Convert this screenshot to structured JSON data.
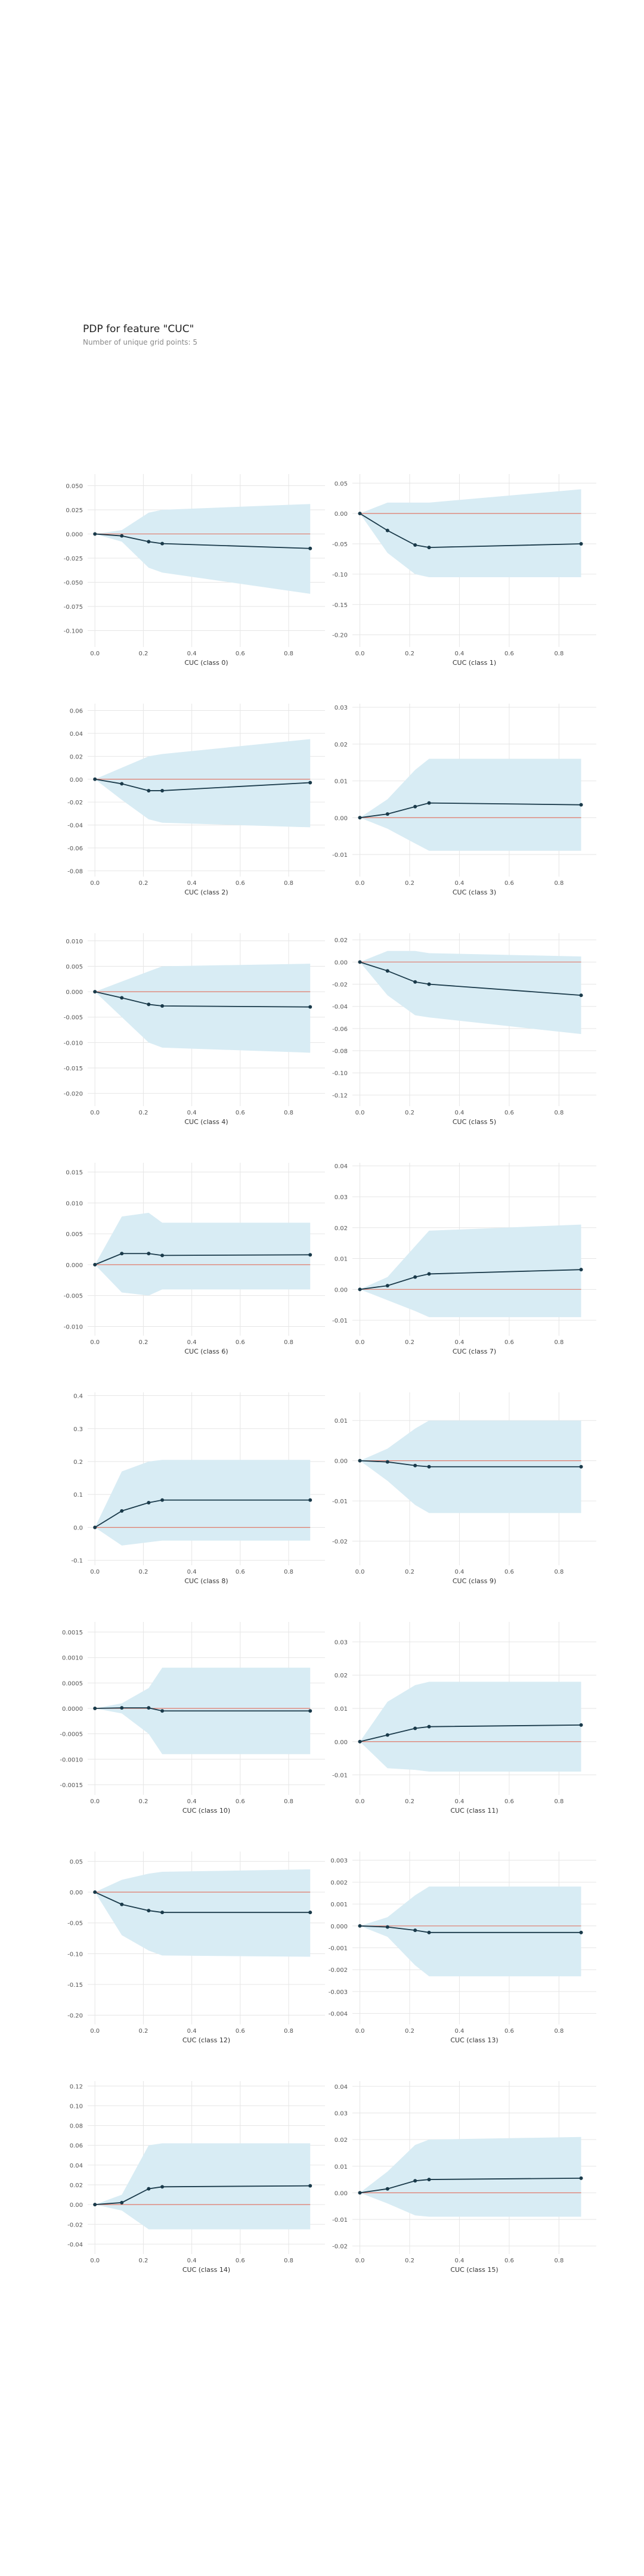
{
  "header": {
    "title": "PDP for feature \"CUC\"",
    "subtitle": "Number of unique grid points: 5"
  },
  "style": {
    "band_color": "#d8ecf4",
    "line_color": "#1a3a4a",
    "zero_line_color": "#e07a6a",
    "grid_color": "#e6e6e6"
  },
  "chart_data": [
    {
      "type": "line",
      "xlabel": "CUC (class 0)",
      "x": [
        0,
        0.111,
        0.222,
        0.278,
        0.889
      ],
      "y": [
        0,
        -0.002,
        -0.008,
        -0.01,
        -0.015
      ],
      "upper": [
        0,
        0.004,
        0.022,
        0.025,
        0.031
      ],
      "lower": [
        0,
        -0.008,
        -0.035,
        -0.04,
        -0.062
      ],
      "yticks": [
        0.05,
        0.025,
        0,
        -0.025,
        -0.05,
        -0.075,
        -0.1
      ],
      "ytick_labels": [
        "0.050",
        "0.025",
        "0.000",
        "-0.025",
        "-0.050",
        "-0.075",
        "-0.100"
      ],
      "ylim": [
        -0.117,
        0.062
      ],
      "xticks": [
        0,
        0.2,
        0.4,
        0.6,
        0.8
      ],
      "xtick_labels": [
        "0.0",
        "0.2",
        "0.4",
        "0.6",
        "0.8"
      ],
      "xlim": [
        -0.03,
        0.95
      ],
      "grid": true
    },
    {
      "type": "line",
      "xlabel": "CUC (class 1)",
      "x": [
        0,
        0.111,
        0.222,
        0.278,
        0.889
      ],
      "y": [
        0,
        -0.028,
        -0.052,
        -0.056,
        -0.05
      ],
      "upper": [
        0,
        0.018,
        0.018,
        0.018,
        0.04
      ],
      "lower": [
        0,
        -0.065,
        -0.1,
        -0.105,
        -0.105
      ],
      "yticks": [
        0.05,
        0,
        -0.05,
        -0.1,
        -0.15,
        -0.2
      ],
      "ytick_labels": [
        "0.05",
        "0.00",
        "-0.05",
        "-0.10",
        "-0.15",
        "-0.20"
      ],
      "ylim": [
        -0.22,
        0.065
      ],
      "xticks": [
        0,
        0.2,
        0.4,
        0.6,
        0.8
      ],
      "xtick_labels": [
        "0.0",
        "0.2",
        "0.4",
        "0.6",
        "0.8"
      ],
      "xlim": [
        -0.03,
        0.95
      ],
      "grid": true
    },
    {
      "type": "line",
      "xlabel": "CUC (class 2)",
      "x": [
        0,
        0.111,
        0.222,
        0.278,
        0.889
      ],
      "y": [
        0,
        -0.004,
        -0.01,
        -0.01,
        -0.003
      ],
      "upper": [
        0,
        0.01,
        0.02,
        0.022,
        0.035
      ],
      "lower": [
        0,
        -0.018,
        -0.035,
        -0.038,
        -0.042
      ],
      "yticks": [
        0.06,
        0.04,
        0.02,
        0,
        -0.02,
        -0.04,
        -0.06,
        -0.08
      ],
      "ytick_labels": [
        "0.06",
        "0.04",
        "0.02",
        "0.00",
        "-0.02",
        "-0.04",
        "-0.06",
        "-0.08"
      ],
      "ylim": [
        -0.085,
        0.066
      ],
      "xticks": [
        0,
        0.2,
        0.4,
        0.6,
        0.8
      ],
      "xtick_labels": [
        "0.0",
        "0.2",
        "0.4",
        "0.6",
        "0.8"
      ],
      "xlim": [
        -0.03,
        0.95
      ],
      "grid": true
    },
    {
      "type": "line",
      "xlabel": "CUC (class 3)",
      "x": [
        0,
        0.111,
        0.222,
        0.278,
        0.889
      ],
      "y": [
        0,
        0.001,
        0.003,
        0.004,
        0.0035
      ],
      "upper": [
        0,
        0.005,
        0.013,
        0.016,
        0.016
      ],
      "lower": [
        0,
        -0.003,
        -0.007,
        -0.009,
        -0.009
      ],
      "yticks": [
        0.03,
        0.02,
        0.01,
        0,
        -0.01
      ],
      "ytick_labels": [
        "0.03",
        "0.02",
        "0.01",
        "0.00",
        "-0.01"
      ],
      "ylim": [
        -0.016,
        0.031
      ],
      "xticks": [
        0,
        0.2,
        0.4,
        0.6,
        0.8
      ],
      "xtick_labels": [
        "0.0",
        "0.2",
        "0.4",
        "0.6",
        "0.8"
      ],
      "xlim": [
        -0.03,
        0.95
      ],
      "grid": true
    },
    {
      "type": "line",
      "xlabel": "CUC (class 4)",
      "x": [
        0,
        0.111,
        0.222,
        0.278,
        0.889
      ],
      "y": [
        0,
        -0.0012,
        -0.0025,
        -0.0028,
        -0.003
      ],
      "upper": [
        0,
        0.002,
        0.004,
        0.005,
        0.0055
      ],
      "lower": [
        0,
        -0.005,
        -0.01,
        -0.011,
        -0.012
      ],
      "yticks": [
        0.01,
        0.005,
        0,
        -0.005,
        -0.01,
        -0.015,
        -0.02
      ],
      "ytick_labels": [
        "0.010",
        "0.005",
        "0.000",
        "-0.005",
        "-0.010",
        "-0.015",
        "-0.020"
      ],
      "ylim": [
        -0.0225,
        0.0115
      ],
      "xticks": [
        0,
        0.2,
        0.4,
        0.6,
        0.8
      ],
      "xtick_labels": [
        "0.0",
        "0.2",
        "0.4",
        "0.6",
        "0.8"
      ],
      "xlim": [
        -0.03,
        0.95
      ],
      "grid": true
    },
    {
      "type": "line",
      "xlabel": "CUC (class 5)",
      "x": [
        0,
        0.111,
        0.222,
        0.278,
        0.889
      ],
      "y": [
        0,
        -0.008,
        -0.018,
        -0.02,
        -0.03
      ],
      "upper": [
        0,
        0.01,
        0.01,
        0.008,
        0.005
      ],
      "lower": [
        0,
        -0.03,
        -0.048,
        -0.05,
        -0.065
      ],
      "yticks": [
        0.02,
        0,
        -0.02,
        -0.04,
        -0.06,
        -0.08,
        -0.1,
        -0.12
      ],
      "ytick_labels": [
        "0.02",
        "0.00",
        "-0.02",
        "-0.04",
        "-0.06",
        "-0.08",
        "-0.10",
        "-0.12"
      ],
      "ylim": [
        -0.13,
        0.026
      ],
      "xticks": [
        0,
        0.2,
        0.4,
        0.6,
        0.8
      ],
      "xtick_labels": [
        "0.0",
        "0.2",
        "0.4",
        "0.6",
        "0.8"
      ],
      "xlim": [
        -0.03,
        0.95
      ],
      "grid": true
    },
    {
      "type": "line",
      "xlabel": "CUC (class 6)",
      "x": [
        0,
        0.111,
        0.222,
        0.278,
        0.889
      ],
      "y": [
        0,
        0.0018,
        0.0018,
        0.0015,
        0.0016
      ],
      "upper": [
        0,
        0.0078,
        0.0084,
        0.0068,
        0.0068
      ],
      "lower": [
        0,
        -0.0045,
        -0.005,
        -0.004,
        -0.004
      ],
      "yticks": [
        0.015,
        0.01,
        0.005,
        0,
        -0.005,
        -0.01
      ],
      "ytick_labels": [
        "0.015",
        "0.010",
        "0.005",
        "0.000",
        "-0.005",
        "-0.010"
      ],
      "ylim": [
        -0.0115,
        0.0165
      ],
      "xticks": [
        0,
        0.2,
        0.4,
        0.6,
        0.8
      ],
      "xtick_labels": [
        "0.0",
        "0.2",
        "0.4",
        "0.6",
        "0.8"
      ],
      "xlim": [
        -0.03,
        0.95
      ],
      "grid": true
    },
    {
      "type": "line",
      "xlabel": "CUC (class 7)",
      "x": [
        0,
        0.111,
        0.222,
        0.278,
        0.889
      ],
      "y": [
        0,
        0.0012,
        0.004,
        0.005,
        0.0064
      ],
      "upper": [
        0,
        0.004,
        0.014,
        0.019,
        0.021
      ],
      "lower": [
        0,
        -0.0035,
        -0.007,
        -0.009,
        -0.009
      ],
      "yticks": [
        0.04,
        0.03,
        0.02,
        0.01,
        0,
        -0.01
      ],
      "ytick_labels": [
        "0.04",
        "0.03",
        "0.02",
        "0.01",
        "0.00",
        "-0.01"
      ],
      "ylim": [
        -0.015,
        0.041
      ],
      "xticks": [
        0,
        0.2,
        0.4,
        0.6,
        0.8
      ],
      "xtick_labels": [
        "0.0",
        "0.2",
        "0.4",
        "0.6",
        "0.8"
      ],
      "xlim": [
        -0.03,
        0.95
      ],
      "grid": true
    },
    {
      "type": "line",
      "xlabel": "CUC (class 8)",
      "x": [
        0,
        0.111,
        0.222,
        0.278,
        0.889
      ],
      "y": [
        0,
        0.05,
        0.075,
        0.083,
        0.083
      ],
      "upper": [
        0,
        0.17,
        0.2,
        0.205,
        0.205
      ],
      "lower": [
        0,
        -0.055,
        -0.045,
        -0.04,
        -0.04
      ],
      "yticks": [
        0.4,
        0.3,
        0.2,
        0.1,
        0,
        -0.1
      ],
      "ytick_labels": [
        "0.4",
        "0.3",
        "0.2",
        "0.1",
        "0.0",
        "-0.1"
      ],
      "ylim": [
        -0.115,
        0.41
      ],
      "xticks": [
        0,
        0.2,
        0.4,
        0.6,
        0.8
      ],
      "xtick_labels": [
        "0.0",
        "0.2",
        "0.4",
        "0.6",
        "0.8"
      ],
      "xlim": [
        -0.03,
        0.95
      ],
      "grid": true
    },
    {
      "type": "line",
      "xlabel": "CUC (class 9)",
      "x": [
        0,
        0.111,
        0.222,
        0.278,
        0.889
      ],
      "y": [
        0,
        -0.0003,
        -0.0012,
        -0.0015,
        -0.0015
      ],
      "upper": [
        0,
        0.003,
        0.008,
        0.01,
        0.01
      ],
      "lower": [
        0,
        -0.005,
        -0.011,
        -0.013,
        -0.013
      ],
      "yticks": [
        0.01,
        0,
        -0.01,
        -0.02
      ],
      "ytick_labels": [
        "0.01",
        "0.00",
        "-0.01",
        "-0.02"
      ],
      "ylim": [
        -0.026,
        0.017
      ],
      "xticks": [
        0,
        0.2,
        0.4,
        0.6,
        0.8
      ],
      "xtick_labels": [
        "0.0",
        "0.2",
        "0.4",
        "0.6",
        "0.8"
      ],
      "xlim": [
        -0.03,
        0.95
      ],
      "grid": true
    },
    {
      "type": "line",
      "xlabel": "CUC (class 10)",
      "x": [
        0,
        0.111,
        0.222,
        0.278,
        0.889
      ],
      "y": [
        0,
        1e-05,
        1e-05,
        -5e-05,
        -5e-05
      ],
      "upper": [
        0,
        0.0001,
        0.0004,
        0.0008,
        0.0008
      ],
      "lower": [
        0,
        -0.0001,
        -0.0005,
        -0.0009,
        -0.0009
      ],
      "yticks": [
        0.0015,
        0.001,
        0.0005,
        0,
        -0.0005,
        -0.001,
        -0.0015
      ],
      "ytick_labels": [
        "0.0015",
        "0.0010",
        "0.0005",
        "0.0000",
        "-0.0005",
        "-0.0010",
        "-0.0015"
      ],
      "ylim": [
        -0.0017,
        0.0017
      ],
      "xticks": [
        0,
        0.2,
        0.4,
        0.6,
        0.8
      ],
      "xtick_labels": [
        "0.0",
        "0.2",
        "0.4",
        "0.6",
        "0.8"
      ],
      "xlim": [
        -0.03,
        0.95
      ],
      "grid": true
    },
    {
      "type": "line",
      "xlabel": "CUC (class 11)",
      "x": [
        0,
        0.111,
        0.222,
        0.278,
        0.889
      ],
      "y": [
        0,
        0.002,
        0.004,
        0.0045,
        0.005
      ],
      "upper": [
        0,
        0.012,
        0.017,
        0.018,
        0.018
      ],
      "lower": [
        0,
        -0.008,
        -0.0085,
        -0.009,
        -0.009
      ],
      "yticks": [
        0.03,
        0.02,
        0.01,
        0,
        -0.01
      ],
      "ytick_labels": [
        "0.03",
        "0.02",
        "0.01",
        "0.00",
        "-0.01"
      ],
      "ylim": [
        -0.016,
        0.036
      ],
      "xticks": [
        0,
        0.2,
        0.4,
        0.6,
        0.8
      ],
      "xtick_labels": [
        "0.0",
        "0.2",
        "0.4",
        "0.6",
        "0.8"
      ],
      "xlim": [
        -0.03,
        0.95
      ],
      "grid": true
    },
    {
      "type": "line",
      "xlabel": "CUC (class 12)",
      "x": [
        0,
        0.111,
        0.222,
        0.278,
        0.889
      ],
      "y": [
        0,
        -0.02,
        -0.03,
        -0.033,
        -0.033
      ],
      "upper": [
        0,
        0.02,
        0.03,
        0.033,
        0.037
      ],
      "lower": [
        0,
        -0.07,
        -0.095,
        -0.103,
        -0.105
      ],
      "yticks": [
        0.05,
        0,
        -0.05,
        -0.1,
        -0.15,
        -0.2
      ],
      "ytick_labels": [
        "0.05",
        "0.00",
        "-0.05",
        "-0.10",
        "-0.15",
        "-0.20"
      ],
      "ylim": [
        -0.215,
        0.066
      ],
      "xticks": [
        0,
        0.2,
        0.4,
        0.6,
        0.8
      ],
      "xtick_labels": [
        "0.0",
        "0.2",
        "0.4",
        "0.6",
        "0.8"
      ],
      "xlim": [
        -0.03,
        0.95
      ],
      "grid": true
    },
    {
      "type": "line",
      "xlabel": "CUC (class 13)",
      "x": [
        0,
        0.111,
        0.222,
        0.278,
        0.889
      ],
      "y": [
        0,
        -5e-05,
        -0.0002,
        -0.0003,
        -0.0003
      ],
      "upper": [
        0,
        0.0004,
        0.0014,
        0.0018,
        0.0018
      ],
      "lower": [
        0,
        -0.0005,
        -0.0018,
        -0.0023,
        -0.0023
      ],
      "yticks": [
        0.003,
        0.002,
        0.001,
        0,
        -0.001,
        -0.002,
        -0.003,
        -0.004
      ],
      "ytick_labels": [
        "0.003",
        "0.002",
        "0.001",
        "0.000",
        "-0.001",
        "-0.002",
        "-0.003",
        "-0.004"
      ],
      "ylim": [
        -0.0045,
        0.0034
      ],
      "xticks": [
        0,
        0.2,
        0.4,
        0.6,
        0.8
      ],
      "xtick_labels": [
        "0.0",
        "0.2",
        "0.4",
        "0.6",
        "0.8"
      ],
      "xlim": [
        -0.03,
        0.95
      ],
      "grid": true
    },
    {
      "type": "line",
      "xlabel": "CUC (class 14)",
      "x": [
        0,
        0.111,
        0.222,
        0.278,
        0.889
      ],
      "y": [
        0,
        0.002,
        0.016,
        0.018,
        0.019
      ],
      "upper": [
        0,
        0.01,
        0.06,
        0.062,
        0.062
      ],
      "lower": [
        0,
        -0.006,
        -0.025,
        -0.025,
        -0.025
      ],
      "yticks": [
        0.12,
        0.1,
        0.08,
        0.06,
        0.04,
        0.02,
        0,
        -0.02,
        -0.04
      ],
      "ytick_labels": [
        "0.12",
        "0.10",
        "0.08",
        "0.06",
        "0.04",
        "0.02",
        "0.00",
        "-0.02",
        "-0.04"
      ],
      "ylim": [
        -0.05,
        0.125
      ],
      "xticks": [
        0,
        0.2,
        0.4,
        0.6,
        0.8
      ],
      "xtick_labels": [
        "0.0",
        "0.2",
        "0.4",
        "0.6",
        "0.8"
      ],
      "xlim": [
        -0.03,
        0.95
      ],
      "grid": true
    },
    {
      "type": "line",
      "xlabel": "CUC (class 15)",
      "x": [
        0,
        0.111,
        0.222,
        0.278,
        0.889
      ],
      "y": [
        0,
        0.0015,
        0.0045,
        0.005,
        0.0055
      ],
      "upper": [
        0,
        0.008,
        0.018,
        0.02,
        0.021
      ],
      "lower": [
        0,
        -0.004,
        -0.0085,
        -0.009,
        -0.009
      ],
      "yticks": [
        0.04,
        0.03,
        0.02,
        0.01,
        0,
        -0.01,
        -0.02
      ],
      "ytick_labels": [
        "0.04",
        "0.03",
        "0.02",
        "0.01",
        "0.00",
        "-0.01",
        "-0.02"
      ],
      "ylim": [
        -0.023,
        0.042
      ],
      "xticks": [
        0,
        0.2,
        0.4,
        0.6,
        0.8
      ],
      "xtick_labels": [
        "0.0",
        "0.2",
        "0.4",
        "0.6",
        "0.8"
      ],
      "xlim": [
        -0.03,
        0.95
      ],
      "grid": true
    }
  ]
}
